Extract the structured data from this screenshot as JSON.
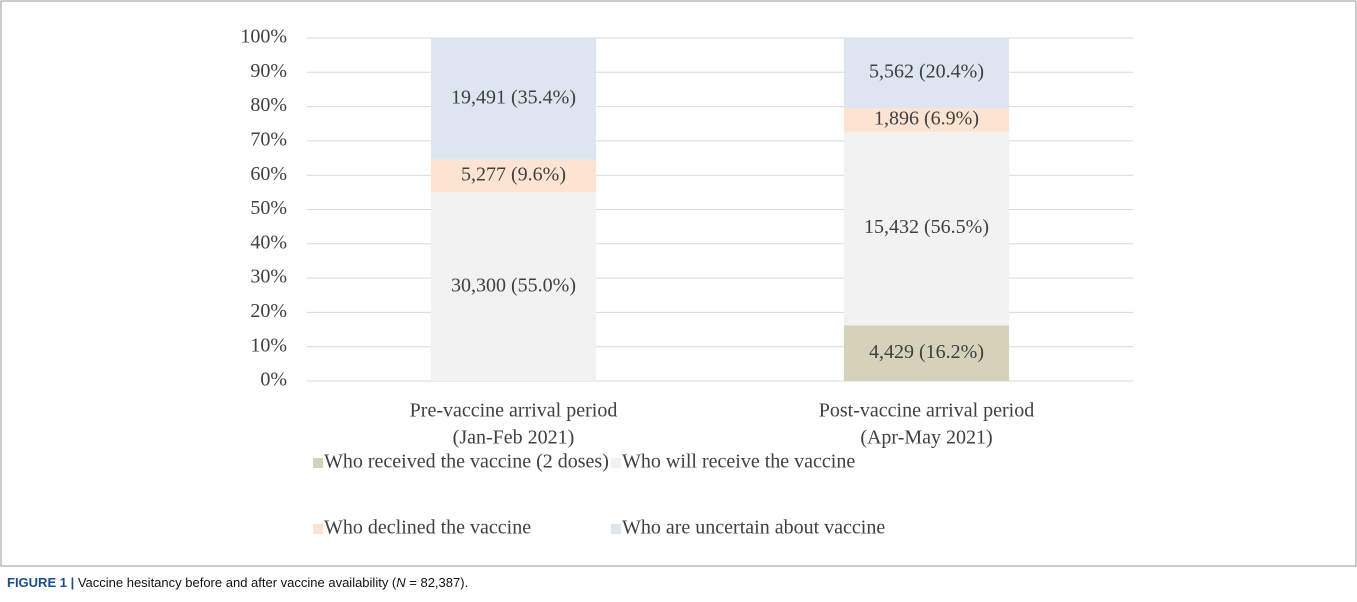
{
  "chart_data": {
    "type": "stacked_bar",
    "categories": [
      [
        "Pre-vaccine arrival period",
        "(Jan-Feb 2021)"
      ],
      [
        "Post-vaccine arrival period",
        "(Apr-May 2021)"
      ]
    ],
    "series": [
      {
        "name": "Who received the vaccine (2 doses)",
        "color": "#d6d1b9",
        "values": [
          null,
          16.2
        ],
        "value_labels": [
          null,
          "4,429 (16.2%)"
        ]
      },
      {
        "name": "Who will receive the vaccine",
        "color": "#f2f2f2",
        "values": [
          55.0,
          56.5
        ],
        "value_labels": [
          "30,300 (55.0%)",
          "15,432 (56.5%)"
        ]
      },
      {
        "name": "Who declined the vaccine",
        "color": "#fde4d2",
        "values": [
          9.6,
          6.9
        ],
        "value_labels": [
          "5,277 (9.6%)",
          "1,896 (6.9%)"
        ]
      },
      {
        "name": "Who are uncertain about vaccine",
        "color": "#dce5f0",
        "values": [
          35.4,
          20.4
        ],
        "value_labels": [
          "19,491 (35.4%)",
          "5,562 (20.4%)"
        ]
      }
    ],
    "ylim": [
      0,
      100
    ],
    "yticks": [
      {
        "value": 0,
        "label": "0%"
      },
      {
        "value": 10,
        "label": "10%"
      },
      {
        "value": 20,
        "label": "20%"
      },
      {
        "value": 30,
        "label": "30%"
      },
      {
        "value": 40,
        "label": "40%"
      },
      {
        "value": 50,
        "label": "50%"
      },
      {
        "value": 60,
        "label": "60%"
      },
      {
        "value": 70,
        "label": "70%"
      },
      {
        "value": 80,
        "label": "80%"
      },
      {
        "value": 90,
        "label": "90%"
      },
      {
        "value": 100,
        "label": "100%"
      }
    ],
    "grid": true
  },
  "caption": {
    "label": "FIGURE 1 |",
    "parts": [
      "Vaccine hesitancy before and after vaccine availability (",
      "N",
      " = 82,387)."
    ]
  }
}
